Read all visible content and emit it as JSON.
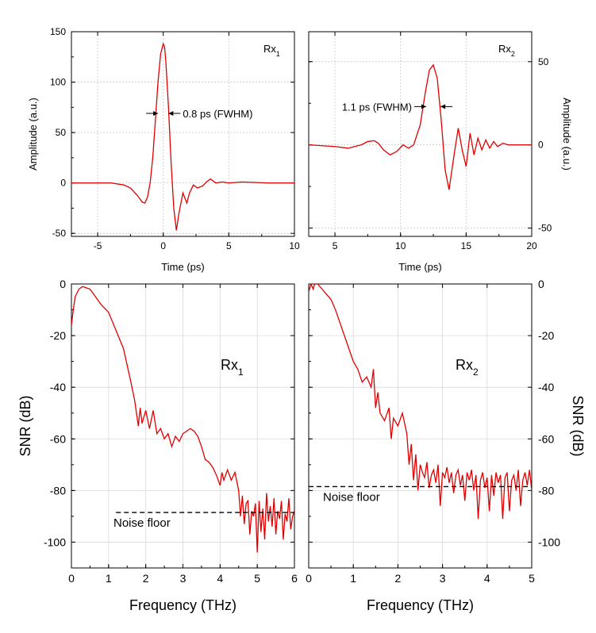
{
  "chart_data": [
    {
      "id": "p1",
      "type": "line",
      "panel": "top-left",
      "label_main": "Rx",
      "label_sub": "1",
      "xlabel": "Time (ps)",
      "ylabel": "Amplitude (a.u.)",
      "xlim": [
        -7,
        10
      ],
      "ylim": [
        -53,
        150
      ],
      "xticks": [
        -5,
        0,
        5,
        10
      ],
      "yticks": [
        -50,
        0,
        50,
        100,
        150
      ],
      "ytick_side": "left",
      "grid": true,
      "annotation": "0.8 ps (FWHM)",
      "fwhm_marks": [
        -0.4,
        0.4
      ],
      "fwhm_level": 69,
      "series": [
        {
          "color": "#e00000",
          "x": [
            -7,
            -4,
            -3,
            -2.5,
            -2,
            -1.6,
            -1.4,
            -1.2,
            -1.0,
            -0.8,
            -0.6,
            -0.4,
            -0.2,
            0.0,
            0.1,
            0.2,
            0.4,
            0.6,
            0.8,
            1.0,
            1.2,
            1.5,
            1.8,
            2.0,
            2.3,
            2.6,
            3.0,
            3.3,
            3.6,
            4.0,
            4.5,
            5.0,
            6.0,
            8.0,
            10.0
          ],
          "y": [
            0,
            0,
            -2,
            -5,
            -12,
            -19,
            -20,
            -14,
            0,
            25,
            62,
            100,
            128,
            138,
            135,
            120,
            75,
            20,
            -25,
            -47,
            -30,
            -10,
            -20,
            -10,
            -2,
            -5,
            -3,
            1,
            4,
            0,
            1,
            0,
            1,
            0,
            0
          ]
        }
      ]
    },
    {
      "id": "p2",
      "type": "line",
      "panel": "top-right",
      "label_main": "Rx",
      "label_sub": "2",
      "xlabel": "Time (ps)",
      "ylabel": "Amplitude (a.u.)",
      "xlim": [
        3,
        20
      ],
      "ylim": [
        -55,
        68
      ],
      "xticks": [
        5,
        10,
        15,
        20
      ],
      "yticks": [
        -50,
        0,
        50
      ],
      "ytick_side": "right",
      "grid": true,
      "annotation": "1.1 ps (FWHM)",
      "fwhm_marks": [
        11.95,
        13.05
      ],
      "fwhm_level": 23,
      "series": [
        {
          "color": "#e00000",
          "x": [
            3,
            5,
            6,
            7,
            7.5,
            8,
            8.3,
            8.7,
            9.2,
            9.7,
            10.2,
            10.6,
            11.0,
            11.5,
            11.9,
            12.2,
            12.5,
            12.8,
            13.1,
            13.4,
            13.7,
            14.1,
            14.4,
            14.7,
            15.0,
            15.3,
            15.6,
            15.9,
            16.2,
            16.5,
            16.8,
            17.1,
            17.4,
            17.8,
            18.2,
            19.0,
            20.0
          ],
          "y": [
            0,
            -1,
            -2,
            0,
            2,
            2.5,
            1,
            -3,
            -6,
            -4,
            0,
            -2,
            0,
            12,
            32,
            45,
            48,
            40,
            15,
            -15,
            -27,
            -5,
            10,
            -3,
            -13,
            7,
            -6,
            4,
            -3,
            3,
            -2,
            2,
            -1,
            1,
            0,
            0,
            0
          ]
        }
      ]
    },
    {
      "id": "p3",
      "type": "line",
      "panel": "bottom-left",
      "label_main": "Rx",
      "label_sub": "1",
      "xlabel": "Frequency (THz)",
      "ylabel": "SNR (dB)",
      "xlim": [
        0,
        6
      ],
      "ylim": [
        -110,
        0
      ],
      "xticks": [
        0,
        1,
        2,
        3,
        4,
        5,
        6
      ],
      "yticks": [
        -100,
        -80,
        -60,
        -40,
        -20,
        0
      ],
      "ytick_side": "left",
      "grid": true,
      "annotation": "Noise floor",
      "noise_floor": -88.5,
      "series": [
        {
          "color": "#e00000",
          "x": [
            0,
            0.05,
            0.1,
            0.2,
            0.3,
            0.4,
            0.5,
            0.6,
            0.7,
            0.8,
            1.0,
            1.2,
            1.4,
            1.6,
            1.7,
            1.8,
            1.85,
            1.9,
            2.0,
            2.1,
            2.2,
            2.3,
            2.4,
            2.5,
            2.6,
            2.7,
            2.8,
            2.9,
            3.0,
            3.1,
            3.2,
            3.3,
            3.4,
            3.5,
            3.6,
            3.7,
            3.8,
            3.9,
            4.0,
            4.05,
            4.1,
            4.2,
            4.3,
            4.4,
            4.5,
            4.55,
            4.6,
            4.65,
            4.7,
            4.75,
            4.8,
            4.85,
            4.9,
            4.95,
            5.0,
            5.05,
            5.1,
            5.15,
            5.2,
            5.25,
            5.3,
            5.35,
            5.4,
            5.45,
            5.5,
            5.55,
            5.6,
            5.65,
            5.7,
            5.75,
            5.8,
            5.85,
            5.9,
            5.95,
            6.0
          ],
          "y": [
            -16,
            -10,
            -5,
            -2,
            -1,
            -1.5,
            -2,
            -4,
            -6,
            -8,
            -11,
            -18,
            -25,
            -38,
            -45,
            -55,
            -48,
            -54,
            -49,
            -56,
            -49,
            -58,
            -56,
            -60,
            -58,
            -63,
            -59,
            -61,
            -58,
            -57,
            -56,
            -57,
            -59,
            -63,
            -68,
            -69,
            -71,
            -74,
            -78,
            -73,
            -76,
            -72,
            -76,
            -73,
            -80,
            -90,
            -82,
            -93,
            -85,
            -84,
            -97,
            -88,
            -90,
            -85,
            -104,
            -84,
            -96,
            -87,
            -99,
            -81,
            -92,
            -86,
            -94,
            -83,
            -97,
            -88,
            -91,
            -84,
            -99,
            -89,
            -92,
            -83,
            -95,
            -90,
            -88
          ]
        }
      ]
    },
    {
      "id": "p4",
      "type": "line",
      "panel": "bottom-right",
      "label_main": "Rx",
      "label_sub": "2",
      "xlabel": "Frequency (THz)",
      "ylabel": "SNR (dB)",
      "xlim": [
        0,
        5
      ],
      "ylim": [
        -110,
        0
      ],
      "xticks": [
        0,
        1,
        2,
        3,
        4,
        5
      ],
      "yticks": [
        -100,
        -80,
        -60,
        -40,
        -20,
        0
      ],
      "ytick_side": "right",
      "grid": true,
      "annotation": "Noise floor",
      "noise_floor": -78.5,
      "series": [
        {
          "color": "#e00000",
          "x": [
            0,
            0.05,
            0.1,
            0.15,
            0.2,
            0.25,
            0.3,
            0.4,
            0.5,
            0.6,
            0.7,
            0.8,
            0.9,
            1.0,
            1.1,
            1.2,
            1.3,
            1.4,
            1.45,
            1.5,
            1.55,
            1.6,
            1.7,
            1.8,
            1.85,
            1.9,
            2.0,
            2.1,
            2.2,
            2.25,
            2.3,
            2.35,
            2.4,
            2.45,
            2.5,
            2.55,
            2.6,
            2.65,
            2.7,
            2.75,
            2.8,
            2.85,
            2.9,
            2.95,
            3.0,
            3.05,
            3.1,
            3.15,
            3.2,
            3.25,
            3.3,
            3.35,
            3.4,
            3.45,
            3.5,
            3.55,
            3.6,
            3.65,
            3.7,
            3.75,
            3.8,
            3.85,
            3.9,
            3.95,
            4.0,
            4.05,
            4.1,
            4.15,
            4.2,
            4.25,
            4.3,
            4.35,
            4.4,
            4.45,
            4.5,
            4.55,
            4.6,
            4.65,
            4.7,
            4.75,
            4.8,
            4.85,
            4.9,
            4.95,
            5.0
          ],
          "y": [
            -3,
            0,
            -2,
            1,
            0,
            -1,
            -2,
            -4,
            -6,
            -10,
            -15,
            -20,
            -25,
            -30,
            -33,
            -38,
            -36,
            -40,
            -33,
            -48,
            -42,
            -50,
            -53,
            -48,
            -60,
            -52,
            -55,
            -50,
            -58,
            -70,
            -62,
            -76,
            -66,
            -80,
            -70,
            -73,
            -75,
            -69,
            -79,
            -74,
            -72,
            -77,
            -70,
            -86,
            -73,
            -75,
            -71,
            -77,
            -73,
            -81,
            -74,
            -72,
            -78,
            -74,
            -84,
            -73,
            -76,
            -72,
            -80,
            -74,
            -91,
            -76,
            -73,
            -79,
            -75,
            -88,
            -74,
            -82,
            -73,
            -77,
            -74,
            -91,
            -75,
            -73,
            -88,
            -76,
            -74,
            -80,
            -72,
            -86,
            -76,
            -73,
            -78,
            -72,
            -80
          ]
        }
      ]
    }
  ]
}
